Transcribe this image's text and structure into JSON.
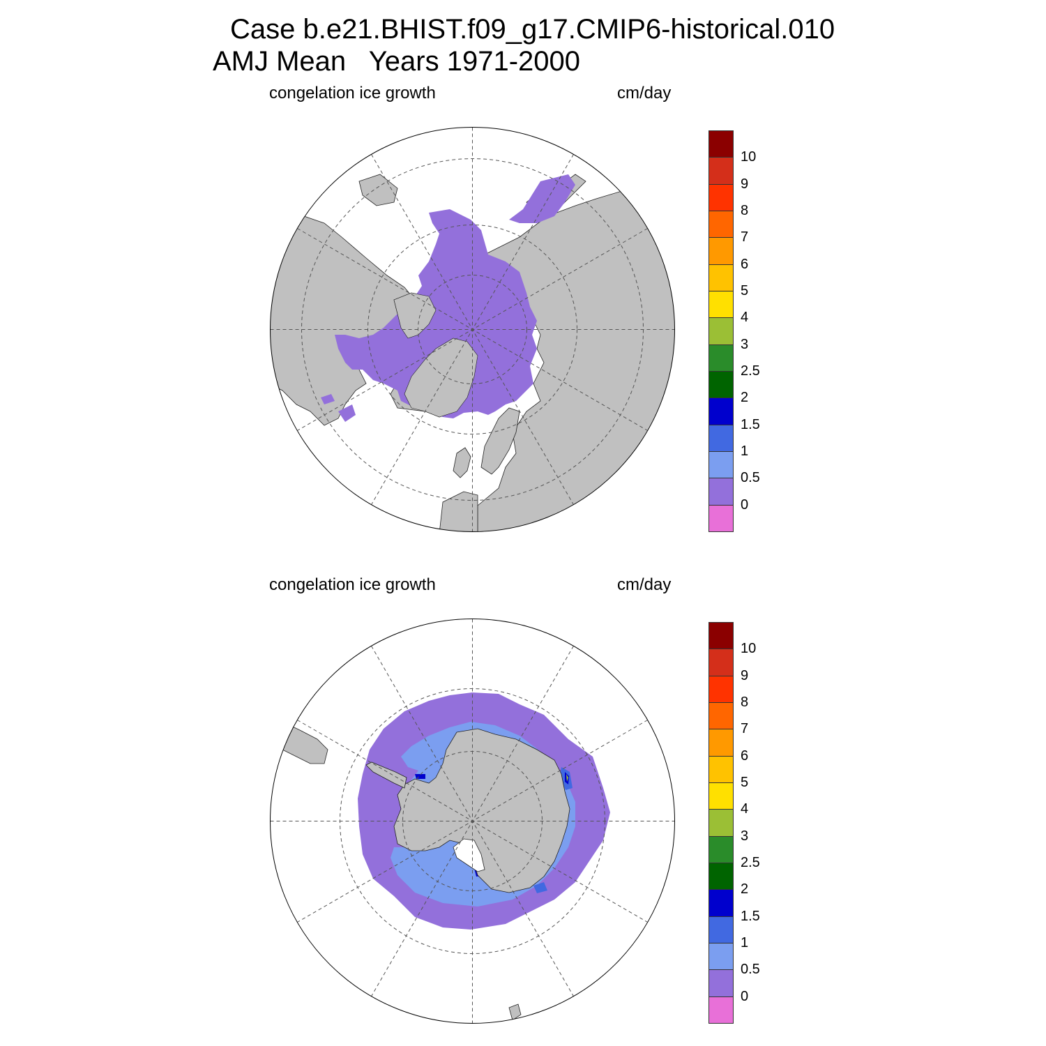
{
  "title": {
    "line1": "Case b.e21.BHIST.f09_g17.CMIP6-historical.010",
    "line2": "AMJ Mean   Years 1971-2000"
  },
  "panels": [
    {
      "id": "north",
      "left_label": "congelation ice growth",
      "right_label": "cm/day",
      "hemisphere": "north"
    },
    {
      "id": "south",
      "left_label": "congelation ice growth",
      "right_label": "cm/day",
      "hemisphere": "south"
    }
  ],
  "colorbar": {
    "labels": [
      "10",
      "9",
      "8",
      "7",
      "6",
      "5",
      "4",
      "3",
      "2.5",
      "2",
      "1.5",
      "1",
      "0.5",
      "0"
    ],
    "colors": [
      "#8b0000",
      "#d42f1a",
      "#ff3300",
      "#ff6600",
      "#ff9900",
      "#ffc200",
      "#ffe000",
      "#9bbf35",
      "#2a8c2a",
      "#006400",
      "#0000cd",
      "#4169e1",
      "#7b9ef0",
      "#9370db",
      "#e870d8"
    ]
  },
  "colors": {
    "land": "#c0c0c0",
    "ocean": "#ffffff",
    "ice_low": "#9370db",
    "ice_mid": "#7b9ef0",
    "ice_blue": "#4169e1",
    "ice_dark": "#0000cd"
  }
}
